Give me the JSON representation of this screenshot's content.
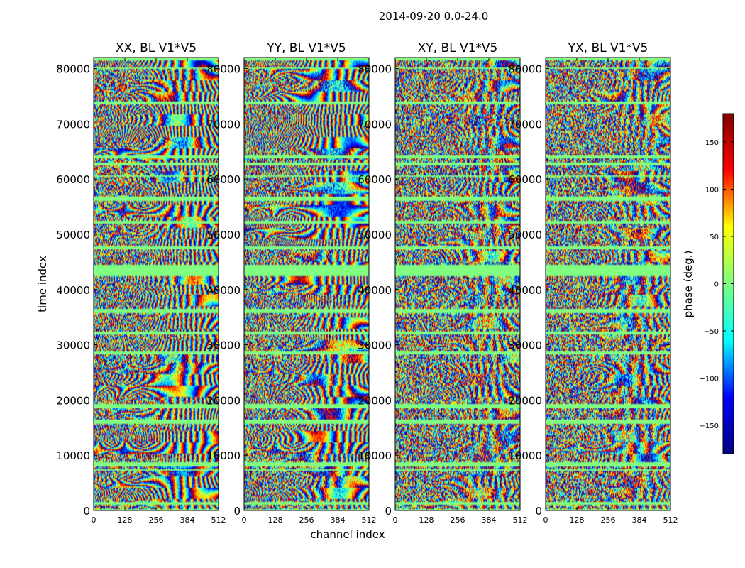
{
  "figure": {
    "suptitle": "2014-09-20 0.0-24.0"
  },
  "chart_data": {
    "type": "heatmap",
    "title": "2014-09-20 0.0-24.0",
    "xlabel": "channel index",
    "ylabel": "time index",
    "xlim": [
      0,
      512
    ],
    "ylim": [
      0,
      82000
    ],
    "xticks": [
      0,
      128,
      256,
      384,
      512
    ],
    "yticks": [
      0,
      10000,
      20000,
      30000,
      40000,
      50000,
      60000,
      70000,
      80000
    ],
    "panels": [
      {
        "title": "XX, BL V1*V5",
        "pol": "XX"
      },
      {
        "title": "YY, BL V1*V5",
        "pol": "YY"
      },
      {
        "title": "XY, BL V1*V5",
        "pol": "XY"
      },
      {
        "title": "YX, BL V1*V5",
        "pol": "YX"
      }
    ],
    "colorbar": {
      "label": "phase (deg.)",
      "range": [
        -180,
        180
      ],
      "ticks": [
        150,
        100,
        50,
        0,
        -50,
        -100,
        -150
      ],
      "tick_labels": [
        "150",
        "100",
        "50",
        "0",
        "−50",
        "−100",
        "−150"
      ],
      "colormap": "jet",
      "stops": [
        "#00007f",
        "#0000ff",
        "#00ffff",
        "#7fff7f",
        "#ffff00",
        "#ff0000",
        "#7f0000"
      ]
    },
    "flagged_color": "#80ff80",
    "flagged_time_bands": [
      [
        0,
        300
      ],
      [
        1000,
        1600
      ],
      [
        7200,
        7500
      ],
      [
        8000,
        8800
      ],
      [
        15800,
        16400
      ],
      [
        18500,
        19200
      ],
      [
        28200,
        28800
      ],
      [
        31800,
        32400
      ],
      [
        35800,
        36500
      ],
      [
        42500,
        44500
      ],
      [
        47200,
        47700
      ],
      [
        52000,
        52400
      ],
      [
        56000,
        56700
      ],
      [
        60300,
        60700
      ],
      [
        62500,
        63100
      ],
      [
        63800,
        64300
      ],
      [
        73500,
        74000
      ],
      [
        79900,
        80300
      ],
      [
        81600,
        82000
      ]
    ]
  }
}
